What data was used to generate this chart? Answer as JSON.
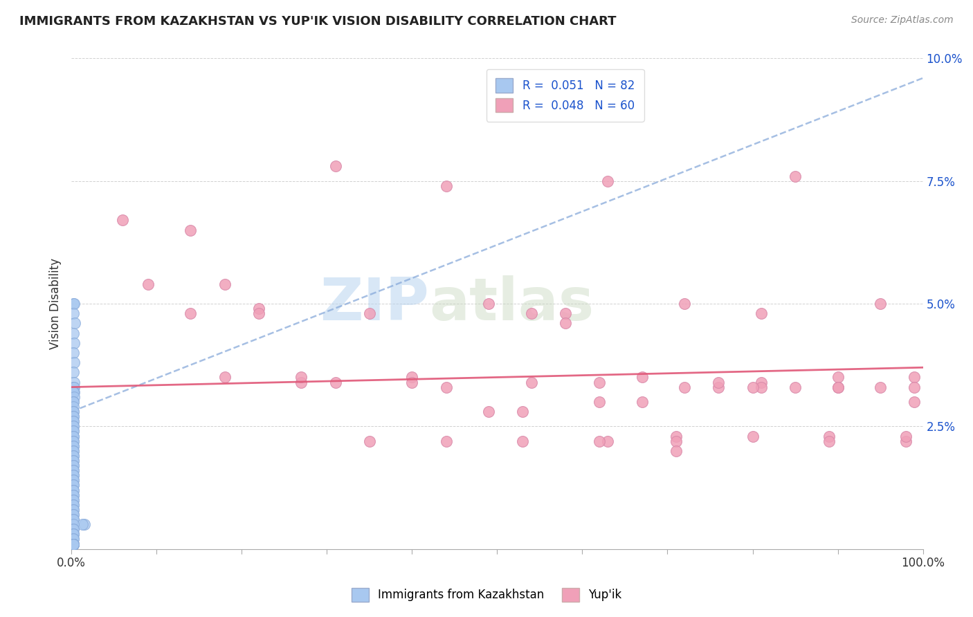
{
  "title": "IMMIGRANTS FROM KAZAKHSTAN VS YUP'IK VISION DISABILITY CORRELATION CHART",
  "source": "Source: ZipAtlas.com",
  "ylabel": "Vision Disability",
  "yticks": [
    0.0,
    0.025,
    0.05,
    0.075,
    0.1
  ],
  "ytick_labels": [
    "",
    "2.5%",
    "5.0%",
    "7.5%",
    "10.0%"
  ],
  "blue_color": "#A8C8F0",
  "pink_color": "#F0A0B8",
  "blue_line_color": "#88AADA",
  "pink_line_color": "#E05878",
  "watermark_zip": "ZIP",
  "watermark_atlas": "atlas",
  "blue_scatter_x": [
    0.002,
    0.003,
    0.002,
    0.004,
    0.002,
    0.003,
    0.002,
    0.003,
    0.002,
    0.003,
    0.002,
    0.003,
    0.003,
    0.002,
    0.003,
    0.002,
    0.002,
    0.002,
    0.002,
    0.002,
    0.002,
    0.002,
    0.002,
    0.002,
    0.002,
    0.002,
    0.002,
    0.002,
    0.002,
    0.002,
    0.002,
    0.002,
    0.002,
    0.002,
    0.002,
    0.002,
    0.002,
    0.002,
    0.002,
    0.002,
    0.002,
    0.002,
    0.002,
    0.002,
    0.002,
    0.002,
    0.002,
    0.002,
    0.002,
    0.002,
    0.002,
    0.002,
    0.002,
    0.002,
    0.002,
    0.002,
    0.002,
    0.002,
    0.002,
    0.002,
    0.002,
    0.002,
    0.002,
    0.002,
    0.015,
    0.013,
    0.002,
    0.002,
    0.002,
    0.002,
    0.002,
    0.002,
    0.002,
    0.002,
    0.002,
    0.002,
    0.002,
    0.002,
    0.002,
    0.002,
    0.002,
    0.002
  ],
  "blue_scatter_y": [
    0.05,
    0.05,
    0.048,
    0.046,
    0.044,
    0.042,
    0.04,
    0.038,
    0.036,
    0.034,
    0.033,
    0.033,
    0.032,
    0.032,
    0.031,
    0.03,
    0.03,
    0.029,
    0.028,
    0.028,
    0.027,
    0.027,
    0.026,
    0.026,
    0.025,
    0.025,
    0.024,
    0.024,
    0.023,
    0.023,
    0.022,
    0.022,
    0.021,
    0.021,
    0.02,
    0.02,
    0.019,
    0.019,
    0.018,
    0.018,
    0.017,
    0.017,
    0.016,
    0.016,
    0.015,
    0.015,
    0.014,
    0.014,
    0.013,
    0.013,
    0.012,
    0.012,
    0.011,
    0.011,
    0.01,
    0.01,
    0.009,
    0.009,
    0.008,
    0.008,
    0.007,
    0.007,
    0.006,
    0.006,
    0.005,
    0.005,
    0.005,
    0.004,
    0.004,
    0.003,
    0.003,
    0.003,
    0.002,
    0.002,
    0.001,
    0.001,
    0.001,
    0.001,
    0.001,
    0.001,
    0.001,
    0.001
  ],
  "pink_scatter_x": [
    0.06,
    0.09,
    0.14,
    0.18,
    0.22,
    0.27,
    0.31,
    0.14,
    0.18,
    0.22,
    0.27,
    0.31,
    0.35,
    0.4,
    0.44,
    0.49,
    0.54,
    0.58,
    0.63,
    0.67,
    0.72,
    0.76,
    0.81,
    0.85,
    0.9,
    0.95,
    0.99,
    0.4,
    0.49,
    0.58,
    0.67,
    0.76,
    0.85,
    0.95,
    0.54,
    0.63,
    0.72,
    0.81,
    0.9,
    0.99,
    0.44,
    0.53,
    0.62,
    0.71,
    0.81,
    0.9,
    0.99,
    0.35,
    0.62,
    0.71,
    0.8,
    0.89,
    0.98,
    0.44,
    0.53,
    0.62,
    0.71,
    0.8,
    0.89,
    0.98
  ],
  "pink_scatter_y": [
    0.067,
    0.054,
    0.065,
    0.054,
    0.049,
    0.034,
    0.078,
    0.048,
    0.035,
    0.048,
    0.035,
    0.034,
    0.048,
    0.035,
    0.074,
    0.05,
    0.034,
    0.048,
    0.075,
    0.035,
    0.05,
    0.033,
    0.048,
    0.076,
    0.035,
    0.05,
    0.035,
    0.034,
    0.028,
    0.046,
    0.03,
    0.034,
    0.033,
    0.033,
    0.048,
    0.022,
    0.033,
    0.034,
    0.033,
    0.03,
    0.033,
    0.022,
    0.034,
    0.023,
    0.033,
    0.033,
    0.033,
    0.022,
    0.03,
    0.022,
    0.033,
    0.023,
    0.022,
    0.022,
    0.028,
    0.022,
    0.02,
    0.023,
    0.022,
    0.023
  ],
  "blue_trendline_x": [
    0.0,
    1.0
  ],
  "blue_trendline_y": [
    0.028,
    0.096
  ],
  "pink_trendline_x": [
    0.0,
    1.0
  ],
  "pink_trendline_y": [
    0.033,
    0.037
  ],
  "xlim": [
    0.0,
    1.0
  ],
  "ylim": [
    0.0,
    0.1
  ]
}
